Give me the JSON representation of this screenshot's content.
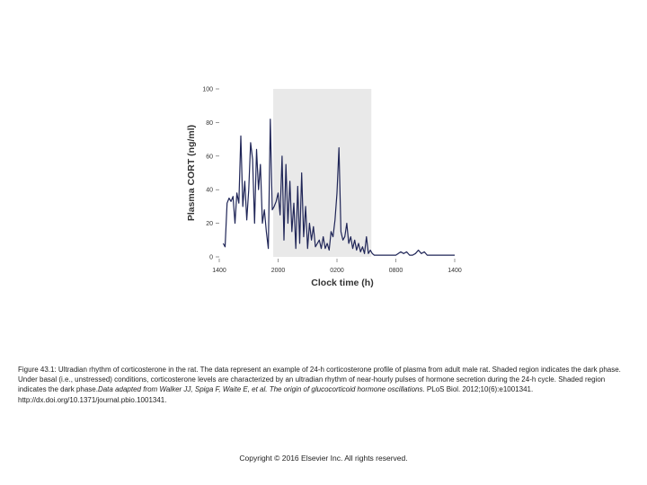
{
  "chart_data": {
    "type": "line",
    "title": "",
    "xlabel": "Clock time (h)",
    "ylabel": "Plasma CORT (ng/ml)",
    "xlim": [
      0,
      24
    ],
    "ylim": [
      0,
      100
    ],
    "x_tick_labels": [
      "1400",
      "2000",
      "0200",
      "0800",
      "1400"
    ],
    "x_tick_hours": [
      0,
      6,
      12,
      18,
      24
    ],
    "y_ticks": [
      0,
      20,
      40,
      60,
      80,
      100
    ],
    "shaded_region": {
      "label": "dark phase",
      "start_hour": 5.5,
      "end_hour": 15.5
    },
    "series": [
      {
        "name": "Plasma CORT",
        "color": "#1f2557",
        "x": [
          0.4,
          0.6,
          0.8,
          1.0,
          1.2,
          1.4,
          1.6,
          1.8,
          2.0,
          2.2,
          2.4,
          2.6,
          2.8,
          3.0,
          3.2,
          3.4,
          3.6,
          3.8,
          4.0,
          4.2,
          4.4,
          4.6,
          4.8,
          5.0,
          5.2,
          5.4,
          5.6,
          5.8,
          6.0,
          6.2,
          6.4,
          6.6,
          6.8,
          7.0,
          7.2,
          7.4,
          7.6,
          7.8,
          8.0,
          8.2,
          8.4,
          8.6,
          8.8,
          9.0,
          9.2,
          9.4,
          9.6,
          9.8,
          10.0,
          10.2,
          10.4,
          10.6,
          10.8,
          11.0,
          11.2,
          11.4,
          11.6,
          11.8,
          12.0,
          12.2,
          12.4,
          12.6,
          12.8,
          13.0,
          13.2,
          13.4,
          13.6,
          13.8,
          14.0,
          14.2,
          14.4,
          14.6,
          14.8,
          15.0,
          15.2,
          15.4,
          15.6,
          15.8,
          16.0,
          16.5,
          17.0,
          17.5,
          18.0,
          18.5,
          18.8,
          19.1,
          19.4,
          19.7,
          20.0,
          20.3,
          20.6,
          20.9,
          21.2,
          21.5,
          21.8,
          22.0,
          22.5,
          23.0,
          23.5,
          24.0
        ],
        "values": [
          8,
          6,
          32,
          35,
          33,
          36,
          20,
          38,
          32,
          72,
          30,
          45,
          22,
          40,
          68,
          58,
          20,
          64,
          40,
          55,
          20,
          28,
          15,
          5,
          82,
          28,
          30,
          33,
          38,
          25,
          60,
          10,
          55,
          20,
          45,
          15,
          32,
          5,
          42,
          8,
          50,
          12,
          30,
          5,
          20,
          10,
          18,
          6,
          8,
          10,
          5,
          12,
          5,
          8,
          4,
          15,
          12,
          22,
          38,
          65,
          15,
          10,
          12,
          20,
          8,
          12,
          5,
          10,
          4,
          8,
          3,
          6,
          2,
          12,
          2,
          4,
          2,
          1,
          1,
          1,
          1,
          1,
          1,
          3,
          2,
          3,
          1,
          1,
          2,
          4,
          2,
          3,
          1,
          1,
          1,
          1,
          1,
          1,
          1,
          1
        ]
      }
    ]
  },
  "caption": {
    "label": "Figure 43.1:",
    "body": " Ultradian rhythm of corticosterone in the rat. The data represent an example of 24-h corticosterone profile of plasma from adult male rat. Shaded region indicates the dark phase. Under basal (i.e., unstressed) conditions, corticosterone levels are characterized by an ultradian rhythm of near-hourly pulses of hormone secretion during the 24-h cycle. Shaded region indicates the dark phase.",
    "source_italic": "Data adapted from Walker JJ, Spiga F, Waite E, et al. The origin of glucocorticoid hormone oscillations.",
    "source_plain": " PLoS Biol. 2012;10(6):e1001341. http://dx.doi.org/10.1371/journal.pbio.1001341."
  },
  "copyright": "Copyright © 2016 Elsevier Inc. All rights reserved."
}
